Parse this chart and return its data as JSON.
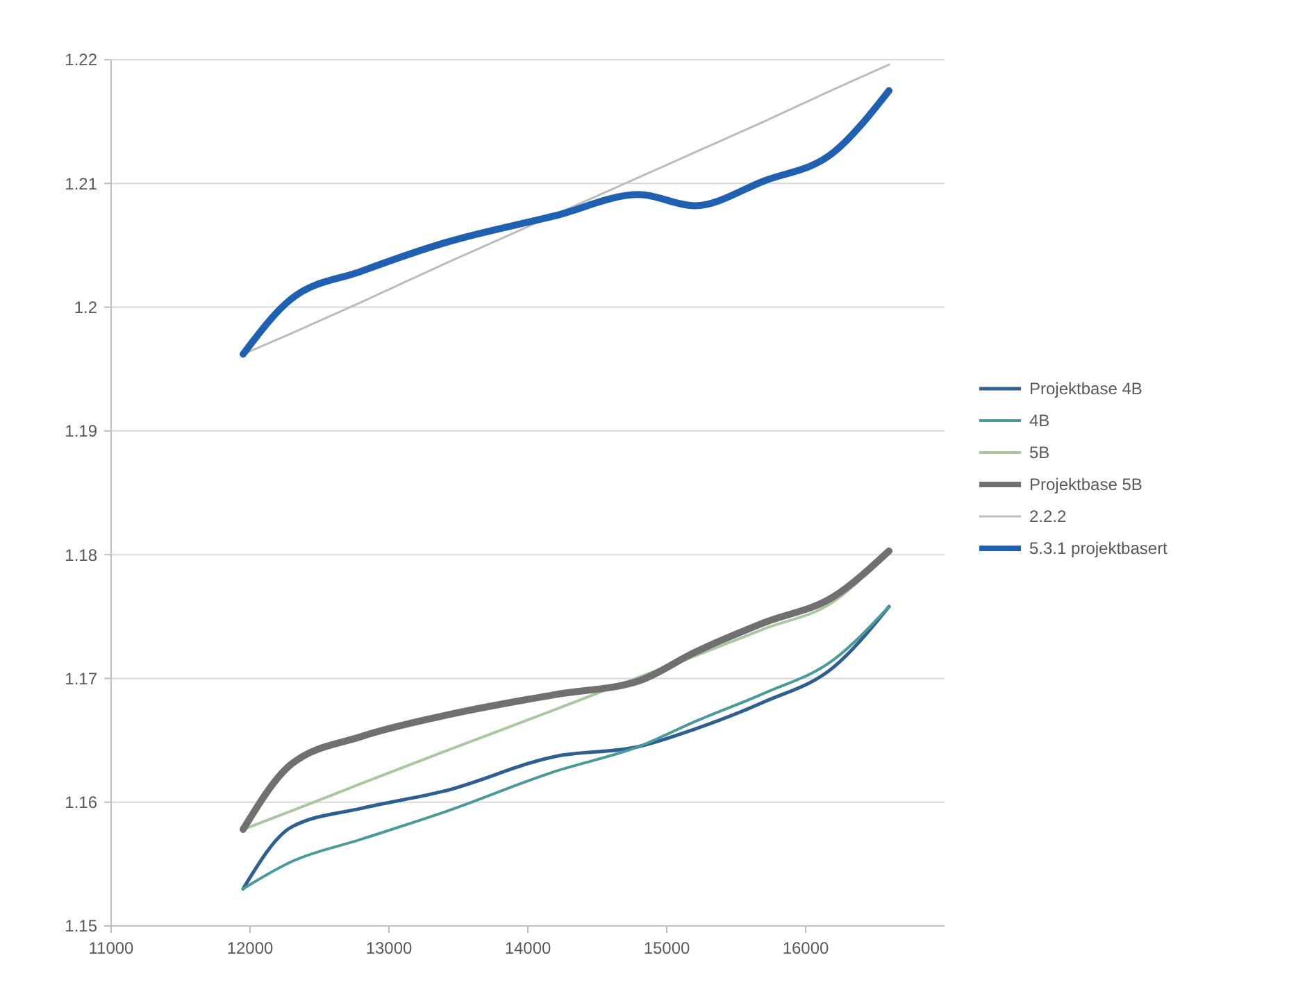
{
  "chart_data": {
    "type": "line",
    "x": [
      11950,
      12300,
      12800,
      13400,
      14200,
      14800,
      15200,
      15700,
      16200,
      16600
    ],
    "series": [
      {
        "name": "Projektbase 4B",
        "color": "#2f5f8f",
        "values": [
          1.153,
          1.158,
          1.1595,
          1.1609,
          1.1637,
          1.1645,
          1.1659,
          1.1681,
          1.1709,
          1.1758
        ]
      },
      {
        "name": "4B",
        "color": "#4a9a9a",
        "values": [
          1.153,
          1.1552,
          1.157,
          1.1592,
          1.1625,
          1.1645,
          1.1665,
          1.1688,
          1.1715,
          1.1758
        ]
      },
      {
        "name": "5B",
        "color": "#a8c8a0",
        "values": [
          1.1578,
          1.1593,
          1.1615,
          1.1641,
          1.1675,
          1.1701,
          1.1718,
          1.174,
          1.1762,
          1.1803
        ]
      },
      {
        "name": "Projektbase 5B",
        "color": "#707070",
        "values": [
          1.1578,
          1.1631,
          1.1653,
          1.167,
          1.1687,
          1.1698,
          1.1721,
          1.1745,
          1.1766,
          1.1803
        ]
      },
      {
        "name": "2.2.2",
        "color": "#bcbcbc",
        "values": [
          1.1962,
          1.1979,
          1.2004,
          1.2035,
          1.2075,
          1.2105,
          1.2125,
          1.215,
          1.2176,
          1.2196
        ]
      },
      {
        "name": "5.3.1 projektbasert",
        "color": "#2060b0",
        "values": [
          1.1962,
          1.2007,
          1.2029,
          1.2052,
          1.2074,
          1.2091,
          1.2082,
          1.2102,
          1.2125,
          1.2175
        ]
      }
    ],
    "xlim": [
      11000,
      17000
    ],
    "xticks": [
      11000,
      12000,
      13000,
      14000,
      15000,
      16000
    ],
    "ylim": [
      1.15,
      1.22
    ],
    "yticks": [
      1.15,
      1.16,
      1.17,
      1.18,
      1.19,
      1.2,
      1.21,
      1.22
    ],
    "grid": "y",
    "legend": "right",
    "marker": "none",
    "line_style": "solid"
  }
}
